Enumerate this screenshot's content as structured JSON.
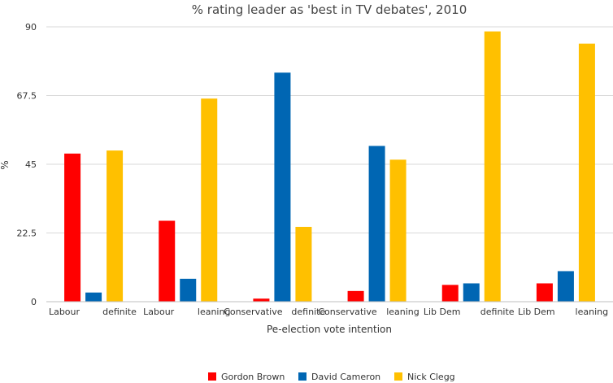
{
  "chart_data": {
    "type": "bar",
    "title": "% rating leader as 'best in TV debates', 2010",
    "xlabel": "Pe-election vote intention",
    "ylabel": "%",
    "ylim": [
      0,
      90
    ],
    "yticks": [
      "0",
      "22.5",
      "45",
      "67.5",
      "90"
    ],
    "grid": true,
    "legend_position": "bottom",
    "category_labels": [
      [
        "Labour",
        "definite"
      ],
      [
        "Labour",
        "leaning"
      ],
      [
        "Conservative",
        "definite"
      ],
      [
        "Conservative",
        "leaning"
      ],
      [
        "Lib Dem",
        "definite"
      ],
      [
        "Lib Dem",
        "leaning"
      ]
    ],
    "series": [
      {
        "name": "Gordon Brown",
        "color": "#ff0000",
        "values": [
          48.5,
          26.5,
          1,
          3.5,
          5.5,
          6
        ]
      },
      {
        "name": "David Cameron",
        "color": "#0066b3",
        "values": [
          3,
          7.5,
          75,
          51,
          6,
          10
        ]
      },
      {
        "name": "Nick Clegg",
        "color": "#ffc000",
        "values": [
          49.5,
          66.5,
          24.5,
          46.5,
          88.5,
          84.5
        ]
      }
    ]
  }
}
